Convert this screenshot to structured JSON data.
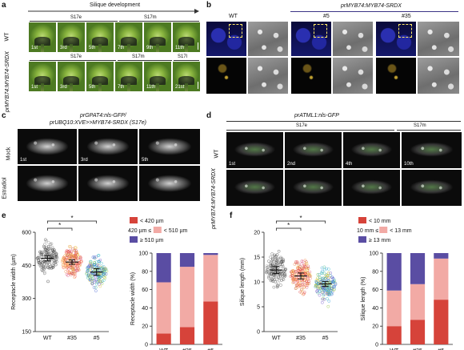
{
  "panels": {
    "a": {
      "letter": "a",
      "header": "Silique development",
      "row1_label": "WT",
      "row2_label": "prMYB74:MYB74-SRDX",
      "row1_stages": [
        "S17e",
        "S17m"
      ],
      "row2_stages": [
        "S17e",
        "S17m",
        "S17l"
      ],
      "row1_tiles": [
        "1st",
        "3rd",
        "5th",
        "7th",
        "9th",
        "11th"
      ],
      "row2_tiles": [
        "1st",
        "3rd",
        "5th",
        "7th",
        "11th",
        "21st"
      ]
    },
    "b": {
      "letter": "b",
      "wt_label": "WT",
      "header": "prMYB74:MYB74-SRDX",
      "line1": "#5",
      "line2": "#35"
    },
    "c": {
      "letter": "c",
      "title_line1": "prGPAT4:nls-GFP/",
      "title_line2": "prUBQ10:XVE>>MYB74-SRDX (S17e)",
      "row1_label": "Mock",
      "row2_label": "Estradiol",
      "tiles": [
        "1st",
        "3rd",
        "5th"
      ]
    },
    "d": {
      "letter": "d",
      "title": "prATML1:nls-GFP",
      "stage1": "S17e",
      "stage2": "S17m",
      "row1_label": "WT",
      "row2_label": "prMYB74:MYB74-SRDX",
      "tiles": [
        "1st",
        "2nd",
        "4th",
        "10th"
      ]
    }
  },
  "chart_data": [
    {
      "panel": "e",
      "type": "scatter",
      "ylabel": "Receptacle width (µm)",
      "categories": [
        "WT",
        "#35",
        "#5"
      ],
      "ylim": [
        150,
        600
      ],
      "yticks": [
        150,
        300,
        450,
        600
      ],
      "means": [
        482,
        465,
        420
      ],
      "ci": [
        [
          470,
          494
        ],
        [
          455,
          475
        ],
        [
          405,
          435
        ]
      ],
      "significance": [
        {
          "pair": [
            "WT",
            "#35"
          ],
          "label": "*"
        },
        {
          "pair": [
            "WT",
            "#5"
          ],
          "label": "*"
        }
      ],
      "point_colors": {
        "WT": "#333333",
        "#35": "#e94b4b",
        "#5": "#3e5fd1"
      }
    },
    {
      "panel": "e",
      "type": "bar",
      "stacked": true,
      "ylabel": "Receptacle width (%)",
      "categories": [
        "WT",
        "#35",
        "#5"
      ],
      "ylim": [
        0,
        100
      ],
      "yticks": [
        0,
        20,
        40,
        60,
        80,
        100
      ],
      "legend": [
        "< 420 µm",
        "420 µm ≤   < 510 µm",
        "≥ 510 µm"
      ],
      "series": [
        {
          "name": "< 420 µm",
          "color": "#d6433a",
          "values": [
            12,
            19,
            47
          ]
        },
        {
          "name": "420 µm ≤   < 510 µm",
          "color": "#f2aaa5",
          "values": [
            56,
            66,
            51
          ]
        },
        {
          "name": "≥ 510 µm",
          "color": "#5a4da3",
          "values": [
            32,
            15,
            2
          ]
        }
      ]
    },
    {
      "panel": "f",
      "type": "scatter",
      "ylabel": "Silique length (mm)",
      "categories": [
        "WT",
        "#35",
        "#5"
      ],
      "ylim": [
        0,
        20
      ],
      "yticks": [
        0,
        5,
        10,
        15,
        20
      ],
      "means": [
        12.4,
        11.2,
        9.6
      ],
      "ci": [
        [
          11.7,
          13.1
        ],
        [
          10.6,
          11.8
        ],
        [
          9.1,
          10.1
        ]
      ],
      "significance": [
        {
          "pair": [
            "WT",
            "#35"
          ],
          "label": "*"
        },
        {
          "pair": [
            "WT",
            "#5"
          ],
          "label": "*"
        }
      ],
      "point_colors": {
        "WT": "#333333",
        "#35": "#e94b4b",
        "#5": "#3e5fd1"
      }
    },
    {
      "panel": "f",
      "type": "bar",
      "stacked": true,
      "ylabel": "Silique length (%)",
      "categories": [
        "WT",
        "#35",
        "#5"
      ],
      "ylim": [
        0,
        100
      ],
      "yticks": [
        0,
        20,
        40,
        60,
        80,
        100
      ],
      "legend": [
        "< 10 mm",
        "10 mm ≤   < 13 mm",
        "≥ 13 mm"
      ],
      "series": [
        {
          "name": "< 10 mm",
          "color": "#d6433a",
          "values": [
            20,
            27,
            49
          ]
        },
        {
          "name": "10 mm ≤   < 13 mm",
          "color": "#f2aaa5",
          "values": [
            39,
            39,
            45
          ]
        },
        {
          "name": "≥ 13 mm",
          "color": "#5a4da3",
          "values": [
            41,
            34,
            6
          ]
        }
      ]
    }
  ]
}
